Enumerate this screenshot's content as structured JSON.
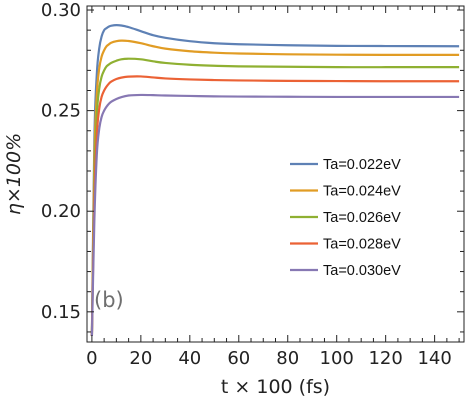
{
  "chart_data": {
    "type": "line",
    "xlabel": "t × 100 (fs)",
    "ylabel": "η×100%",
    "panel_label": "(b)",
    "xlim": [
      -2,
      152
    ],
    "ylim": [
      0.135,
      0.302
    ],
    "xticks": [
      0,
      20,
      40,
      60,
      80,
      100,
      120,
      140
    ],
    "yticks": [
      0.15,
      0.2,
      0.25,
      0.3
    ],
    "ytick_labels": [
      "0.15",
      "0.20",
      "0.25",
      "0.30"
    ],
    "legend_position": "center-right",
    "series": [
      {
        "name": "Ta=0.022eV",
        "color": "#5e81b5",
        "x": [
          0,
          1,
          2,
          3,
          4,
          5,
          6,
          7,
          8,
          10,
          12,
          15,
          20,
          25,
          30,
          40,
          50,
          60,
          80,
          100,
          120,
          150
        ],
        "y": [
          0.138,
          0.235,
          0.268,
          0.281,
          0.287,
          0.29,
          0.291,
          0.2918,
          0.2922,
          0.2925,
          0.2923,
          0.2915,
          0.2895,
          0.2875,
          0.2862,
          0.2845,
          0.2835,
          0.283,
          0.2825,
          0.2822,
          0.2821,
          0.282
        ]
      },
      {
        "name": "Ta=0.024eV",
        "color": "#e19c24",
        "x": [
          0,
          1,
          2,
          3,
          4,
          5,
          6,
          7,
          8,
          10,
          12,
          15,
          20,
          25,
          30,
          40,
          50,
          60,
          80,
          100,
          120,
          150
        ],
        "y": [
          0.138,
          0.225,
          0.258,
          0.271,
          0.277,
          0.28,
          0.282,
          0.283,
          0.2838,
          0.2845,
          0.2848,
          0.2846,
          0.2835,
          0.282,
          0.2808,
          0.2795,
          0.2788,
          0.2784,
          0.278,
          0.2778,
          0.2777,
          0.2777
        ]
      },
      {
        "name": "Ta=0.026eV",
        "color": "#8fb032",
        "x": [
          0,
          1,
          2,
          3,
          4,
          5,
          6,
          7,
          8,
          10,
          12,
          15,
          20,
          25,
          30,
          40,
          50,
          60,
          80,
          100,
          120,
          150
        ],
        "y": [
          0.138,
          0.215,
          0.248,
          0.261,
          0.267,
          0.27,
          0.272,
          0.273,
          0.2738,
          0.2748,
          0.2755,
          0.2758,
          0.2755,
          0.2745,
          0.2737,
          0.2728,
          0.2723,
          0.272,
          0.2718,
          0.2716,
          0.2716,
          0.2716
        ]
      },
      {
        "name": "Ta=0.028eV",
        "color": "#eb6235",
        "x": [
          0,
          1,
          2,
          3,
          4,
          5,
          6,
          7,
          8,
          10,
          12,
          15,
          20,
          25,
          30,
          40,
          50,
          60,
          80,
          100,
          120,
          150
        ],
        "y": [
          0.138,
          0.205,
          0.238,
          0.251,
          0.257,
          0.26,
          0.262,
          0.2635,
          0.2645,
          0.2657,
          0.2664,
          0.2669,
          0.267,
          0.2665,
          0.266,
          0.2655,
          0.2652,
          0.265,
          0.2648,
          0.2647,
          0.2646,
          0.2646
        ]
      },
      {
        "name": "Ta=0.030eV",
        "color": "#8778b3",
        "x": [
          0,
          1,
          2,
          3,
          4,
          5,
          6,
          7,
          8,
          10,
          12,
          15,
          20,
          25,
          30,
          40,
          50,
          60,
          80,
          100,
          120,
          150
        ],
        "y": [
          0.138,
          0.195,
          0.228,
          0.241,
          0.247,
          0.25,
          0.252,
          0.2535,
          0.2545,
          0.2558,
          0.2567,
          0.2575,
          0.2578,
          0.2577,
          0.2575,
          0.2573,
          0.2571,
          0.257,
          0.2569,
          0.2568,
          0.2568,
          0.2568
        ]
      }
    ]
  }
}
